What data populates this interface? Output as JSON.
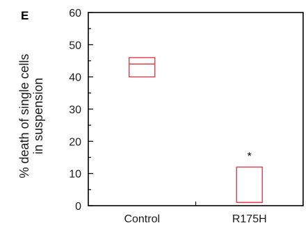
{
  "panel_label": "E",
  "colors": {
    "box": "#d9414e",
    "axis": "#000000"
  },
  "chart_data": {
    "type": "box",
    "title": "",
    "xlabel": "",
    "ylabel_lines": [
      "% death of single cells",
      "in suspension"
    ],
    "ylim": [
      0,
      60
    ],
    "yticks": [
      0,
      10,
      20,
      30,
      40,
      50,
      60
    ],
    "categories": [
      "Control",
      "R175H"
    ],
    "boxes": [
      {
        "category": "Control",
        "q1": 40,
        "median": 44,
        "q3": 46
      },
      {
        "category": "R175H",
        "q1": 1,
        "median": 1,
        "q3": 12
      }
    ],
    "annotations": [
      {
        "category": "R175H",
        "text": "*",
        "y": 16
      }
    ],
    "grid": false,
    "legend": "none"
  }
}
